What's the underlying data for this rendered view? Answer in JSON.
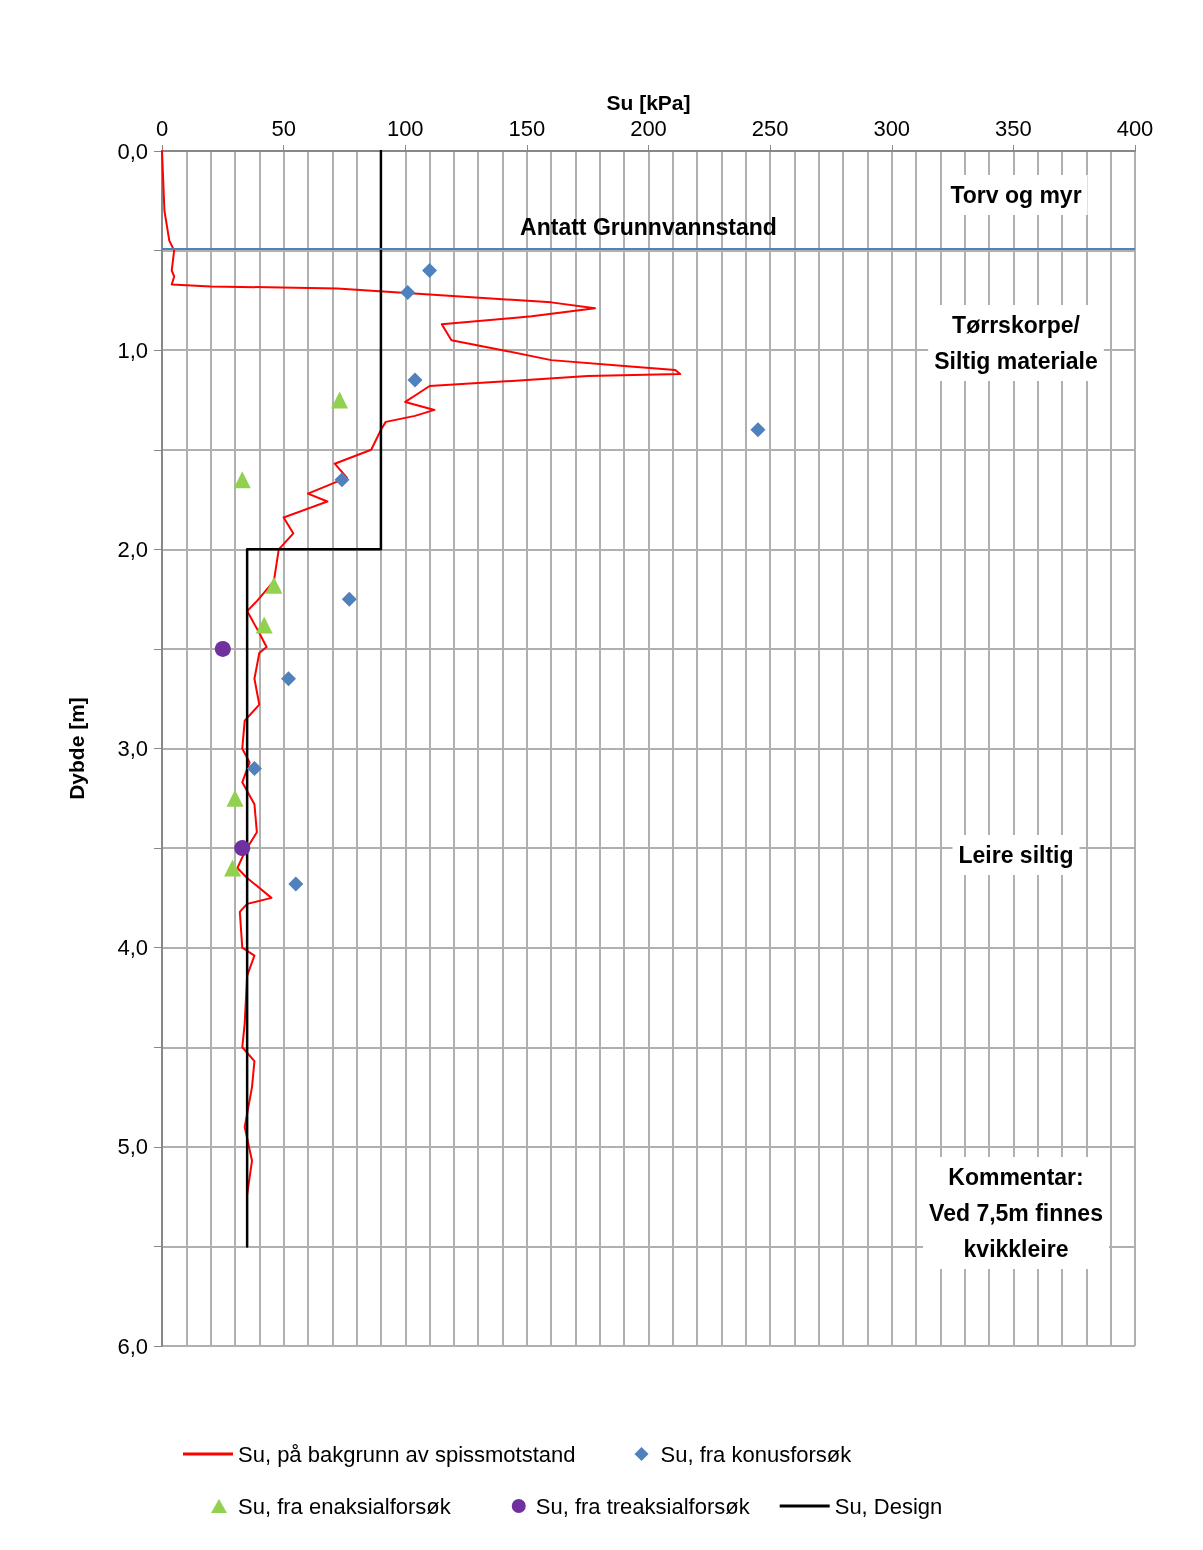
{
  "chart_data": {
    "type": "line",
    "xlabel": "Su [kPa]",
    "ylabel": "Dybde [m]",
    "xlim": [
      0,
      400
    ],
    "xticks": [
      0,
      50,
      100,
      150,
      200,
      250,
      300,
      350,
      400
    ],
    "ylim": [
      6,
      0
    ],
    "yticks": [
      {
        "value": 0,
        "label": "0,0"
      },
      {
        "value": 0.5,
        "label": null
      },
      {
        "value": 1,
        "label": "1,0"
      },
      {
        "value": 1.5,
        "label": null
      },
      {
        "value": 2,
        "label": "2,0"
      },
      {
        "value": 2.5,
        "label": null
      },
      {
        "value": 3,
        "label": "3,0"
      },
      {
        "value": 3.5,
        "label": null
      },
      {
        "value": 4,
        "label": "4,0"
      },
      {
        "value": 4.5,
        "label": null
      },
      {
        "value": 5,
        "label": "5,0"
      },
      {
        "value": 5.5,
        "label": null
      },
      {
        "value": 6,
        "label": "6,0"
      }
    ],
    "grid": true,
    "legend": "bottom",
    "series": [
      {
        "name": "Su, på bakgrunn av spissmotstand",
        "color": "#ff0000",
        "marker": "none",
        "line_style": "solid",
        "x": [
          0,
          1,
          3,
          5,
          4,
          5,
          4,
          20,
          72,
          110,
          160,
          178,
          152,
          115,
          119,
          140,
          160,
          190,
          211,
          213,
          175,
          150,
          110,
          105,
          100,
          112,
          104,
          92,
          90,
          86,
          71,
          76,
          60,
          68,
          50,
          54,
          48,
          46,
          39,
          35,
          40,
          43,
          40,
          38,
          40,
          34,
          33,
          36,
          33,
          38,
          39,
          34,
          31,
          35,
          45,
          35,
          32,
          33,
          38,
          35,
          34,
          33,
          38,
          37,
          34,
          37,
          35
        ],
        "values": [
          0,
          0.3,
          0.45,
          0.5,
          0.6,
          0.63,
          0.67,
          0.68,
          0.69,
          0.72,
          0.76,
          0.79,
          0.83,
          0.87,
          0.95,
          1.0,
          1.05,
          1.08,
          1.1,
          1.12,
          1.13,
          1.15,
          1.18,
          1.22,
          1.26,
          1.3,
          1.33,
          1.36,
          1.4,
          1.5,
          1.57,
          1.64,
          1.72,
          1.76,
          1.84,
          1.92,
          2.0,
          2.16,
          2.26,
          2.31,
          2.42,
          2.49,
          2.52,
          2.65,
          2.78,
          2.86,
          3.0,
          3.07,
          3.17,
          3.28,
          3.42,
          3.52,
          3.6,
          3.65,
          3.75,
          3.78,
          3.82,
          4.0,
          4.04,
          4.14,
          4.38,
          4.5,
          4.57,
          4.7,
          4.9,
          5.07,
          5.24
        ]
      },
      {
        "name": "Su, fra konusforsøk",
        "type": "scatter",
        "color": "#4f81bd",
        "marker": "diamond",
        "x": [
          110,
          101,
          104,
          245,
          74,
          77,
          52,
          38,
          55
        ],
        "values": [
          0.6,
          0.71,
          1.15,
          1.4,
          1.65,
          2.25,
          2.65,
          3.1,
          3.68
        ]
      },
      {
        "name": "Su, fra enaksialforsøk",
        "type": "scatter",
        "color": "#92d050",
        "marker": "triangle",
        "x": [
          73,
          33,
          46,
          42,
          30,
          29
        ],
        "values": [
          1.25,
          1.65,
          2.18,
          2.38,
          3.25,
          3.6
        ]
      },
      {
        "name": "Su, fra treaksialforsøk",
        "type": "scatter",
        "color": "#7030a0",
        "marker": "circle",
        "x": [
          25,
          33
        ],
        "values": [
          2.5,
          3.5
        ]
      },
      {
        "name": "Su, Design",
        "color": "#000000",
        "marker": "none",
        "line_style": "solid",
        "x": [
          90,
          90,
          35,
          35
        ],
        "values": [
          0,
          2,
          2,
          5.5
        ]
      }
    ],
    "ref_lines": [
      {
        "axis": "y",
        "value": 0.49,
        "label": "Antatt Grunnvannstand",
        "color": "#4f81bd",
        "line_style": "solid"
      }
    ],
    "annotations": [
      "Torv og myr",
      "Tørrskorpe/\nSiltig materiale",
      "Leire siltig",
      "Kommentar:\nVed 7,5m finnes\nkvikkleire"
    ]
  }
}
